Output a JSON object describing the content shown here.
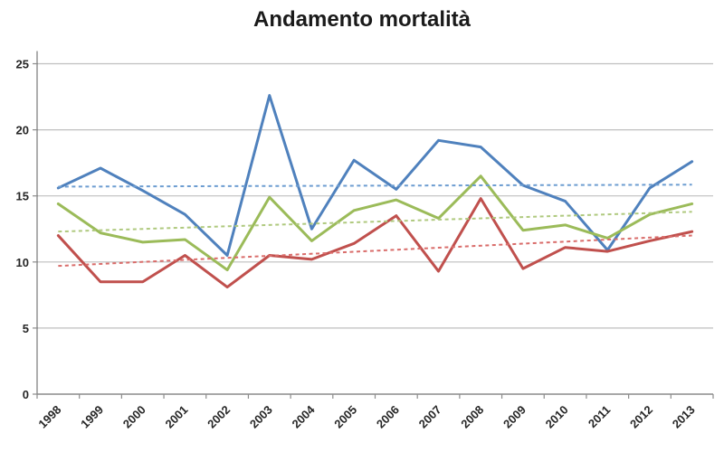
{
  "title": "Andamento mortalità",
  "chart_data": {
    "type": "line",
    "title": "Andamento mortalità",
    "xlabel": "",
    "ylabel": "",
    "ylim": [
      0,
      25
    ],
    "yticks": [
      0,
      5,
      10,
      15,
      20,
      25
    ],
    "grid": true,
    "legend": "none",
    "categories": [
      "1998",
      "1999",
      "2000",
      "2001",
      "2002",
      "2003",
      "2004",
      "2005",
      "2006",
      "2007",
      "2008",
      "2009",
      "2010",
      "2011",
      "2012",
      "2013"
    ],
    "series": [
      {
        "name": "blue-line",
        "color": "#4F81BD",
        "values": [
          15.6,
          17.1,
          15.4,
          13.6,
          10.5,
          22.6,
          12.5,
          17.7,
          15.5,
          19.2,
          18.7,
          15.8,
          14.6,
          10.9,
          15.6,
          17.6
        ]
      },
      {
        "name": "green-line",
        "color": "#9BBB59",
        "values": [
          14.4,
          12.2,
          11.5,
          11.7,
          9.4,
          14.9,
          11.6,
          13.9,
          14.7,
          13.3,
          16.5,
          12.4,
          12.8,
          11.8,
          13.6,
          14.4
        ]
      },
      {
        "name": "red-line",
        "color": "#C0504D",
        "values": [
          12.0,
          8.5,
          8.5,
          10.5,
          8.1,
          10.5,
          10.2,
          11.4,
          13.5,
          9.3,
          14.8,
          9.5,
          11.1,
          10.8,
          11.6,
          12.3
        ]
      }
    ],
    "trendlines": [
      {
        "name": "blue-trendline",
        "color": "#6D9DD1",
        "start": 15.7,
        "end": 15.85
      },
      {
        "name": "green-trendline",
        "color": "#AFC97E",
        "start": 12.3,
        "end": 13.8
      },
      {
        "name": "red-trendline",
        "color": "#D96C6A",
        "start": 9.7,
        "end": 12.0
      }
    ]
  },
  "style_colors": {
    "gridline": "#BFBFBF",
    "axis": "#8C8C8C",
    "tick_label": "#262626",
    "background": "#FFFFFF"
  }
}
